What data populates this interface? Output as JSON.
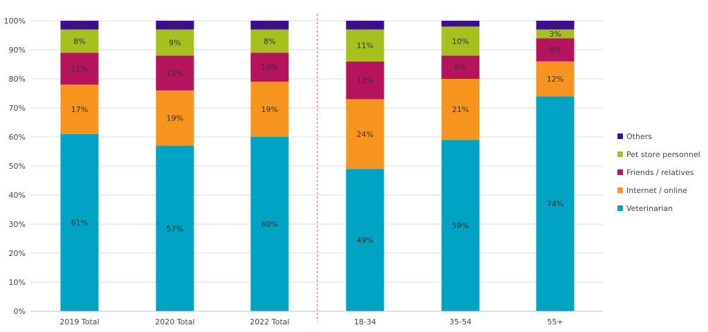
{
  "chart_data": {
    "type": "bar",
    "stacked": true,
    "categories": [
      "2019 Total",
      "2020 Total",
      "2022 Total",
      "18-34",
      "35-54",
      "55+"
    ],
    "series": [
      {
        "name": "Veterinarian",
        "color": "#00a3c4",
        "values": [
          61,
          57,
          60,
          49,
          59,
          74
        ],
        "labels": [
          "61%",
          "57%",
          "60%",
          "49%",
          "59%",
          "74%"
        ]
      },
      {
        "name": "Internet / online",
        "color": "#f7941d",
        "values": [
          17,
          19,
          19,
          24,
          21,
          12
        ],
        "labels": [
          "17%",
          "19%",
          "19%",
          "24%",
          "21%",
          "12%"
        ]
      },
      {
        "name": "Friends / relatives",
        "color": "#b5135b",
        "values": [
          11,
          12,
          10,
          13,
          8,
          8
        ],
        "labels": [
          "11%",
          "12%",
          "10%",
          "13%",
          "8%",
          "8%"
        ]
      },
      {
        "name": "Pet store personnel",
        "color": "#a8c01d",
        "values": [
          8,
          9,
          8,
          11,
          10,
          3
        ],
        "labels": [
          "8%",
          "9%",
          "8%",
          "11%",
          "10%",
          "3%"
        ]
      },
      {
        "name": "Others",
        "color": "#3d0d91",
        "values": [
          3,
          3,
          3,
          3,
          2,
          3
        ],
        "labels": [
          "3%",
          "3%",
          "3%",
          "3%",
          "2%",
          "3%"
        ]
      }
    ],
    "yticks": [
      "0%",
      "10%",
      "20%",
      "30%",
      "40%",
      "50%",
      "60%",
      "70%",
      "80%",
      "90%",
      "100%"
    ],
    "ylim": [
      0,
      100
    ],
    "title": "",
    "xlabel": "",
    "ylabel": "",
    "grid": true,
    "legend_position": "right",
    "divider_after_category": "2022 Total"
  }
}
